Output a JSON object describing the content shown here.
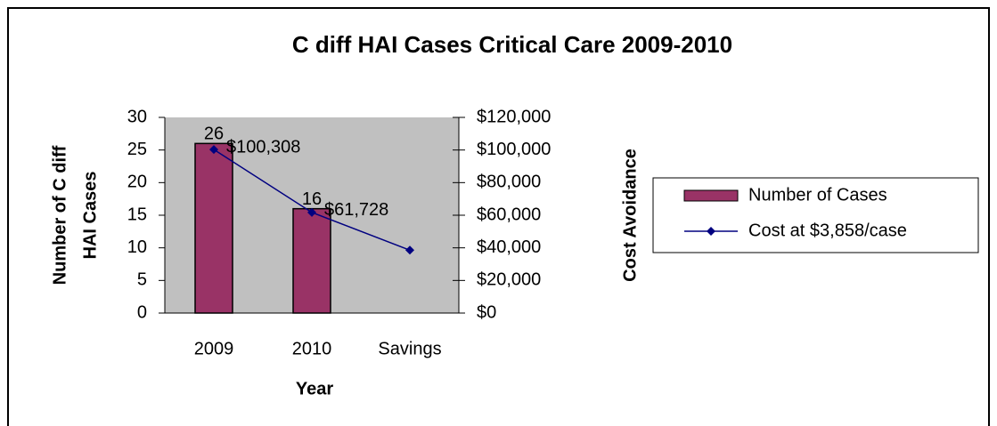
{
  "chart_data": {
    "type": "combo",
    "title": "C diff HAI Cases Critical Care 2009-2010",
    "xlabel": "Year",
    "ylabel": [
      "Number of C diff",
      "HAI Cases"
    ],
    "y2label": "Cost Avoidance",
    "categories": [
      "2009",
      "2010",
      "Savings"
    ],
    "ylim": [
      0,
      30
    ],
    "yticks": [
      0,
      5,
      10,
      15,
      20,
      25,
      30
    ],
    "y2lim": [
      0,
      120000
    ],
    "y2ticks": [
      {
        "value": 0,
        "label": "$0"
      },
      {
        "value": 20000,
        "label": "$20,000"
      },
      {
        "value": 40000,
        "label": "$40,000"
      },
      {
        "value": 60000,
        "label": "$60,000"
      },
      {
        "value": 80000,
        "label": "$80,000"
      },
      {
        "value": 100000,
        "label": "$100,000"
      },
      {
        "value": 120000,
        "label": "$120,000"
      }
    ],
    "series": [
      {
        "name": "Number of Cases",
        "type": "bar",
        "color": "#993366",
        "values": [
          26,
          16,
          null
        ],
        "value_labels": [
          "26",
          "16",
          null
        ]
      },
      {
        "name": "Cost at $3,858/case",
        "type": "line",
        "axis": "y2",
        "color": "#000080",
        "values": [
          100308,
          61728,
          38580
        ],
        "value_labels": [
          "$100,308",
          "$61,728",
          null
        ]
      }
    ],
    "plot_background": "#c0c0c0"
  }
}
